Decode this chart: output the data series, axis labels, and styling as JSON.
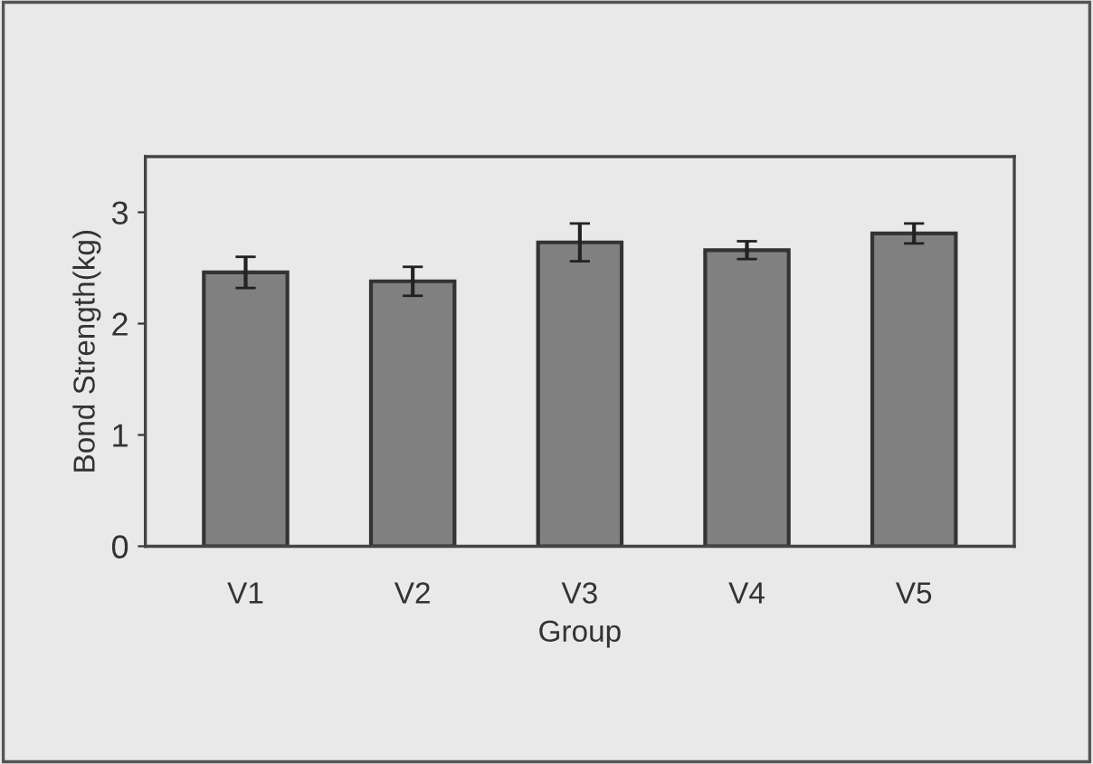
{
  "chart_data": {
    "type": "bar",
    "xlabel": "Group",
    "ylabel": "Bond Strength(kg)",
    "categories": [
      "V1",
      "V2",
      "V3",
      "V4",
      "V5"
    ],
    "values": [
      2.46,
      2.38,
      2.73,
      2.66,
      2.81
    ],
    "errors": [
      0.14,
      0.13,
      0.17,
      0.08,
      0.09
    ],
    "color": "#808080",
    "ylim": [
      0,
      3.5
    ],
    "yticks": [
      0,
      1,
      2,
      3
    ],
    "grid": false,
    "legend": false
  }
}
